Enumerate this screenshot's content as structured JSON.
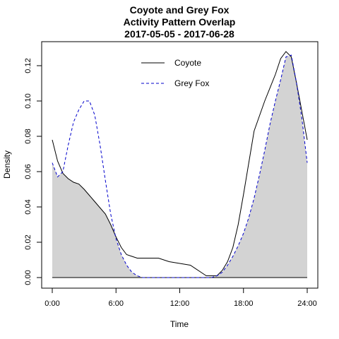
{
  "chart_data": {
    "type": "area",
    "title": [
      "Coyote and Grey Fox",
      "Activity Pattern Overlap",
      "2017-05-05 - 2017-06-28"
    ],
    "xlabel": "Time",
    "ylabel": "Density",
    "xlim": [
      0,
      24
    ],
    "ylim": [
      0,
      0.13
    ],
    "xticks": [
      0,
      6,
      12,
      18,
      24
    ],
    "xtick_labels": [
      "0:00",
      "6:00",
      "12:00",
      "18:00",
      "24:00"
    ],
    "yticks": [
      0.0,
      0.02,
      0.04,
      0.06,
      0.08,
      0.1,
      0.12
    ],
    "ytick_labels": [
      "0.00",
      "0.02",
      "0.04",
      "0.06",
      "0.08",
      "0.10",
      "0.12"
    ],
    "legend_position": "top-center",
    "overlap_fill_color": "#d3d3d3",
    "series": [
      {
        "name": "Coyote",
        "line": "solid",
        "color": "#000000",
        "x": [
          0,
          0.5,
          1,
          1.5,
          2,
          2.5,
          3,
          4,
          5,
          5.5,
          6,
          6.5,
          7,
          7.5,
          8,
          9,
          10,
          11,
          12,
          13,
          14,
          14.5,
          15,
          15.5,
          16,
          16.5,
          17,
          17.5,
          18,
          18.5,
          19,
          20,
          21,
          21.5,
          22,
          22.5,
          23,
          24
        ],
        "y": [
          0.078,
          0.066,
          0.059,
          0.056,
          0.054,
          0.053,
          0.05,
          0.043,
          0.036,
          0.03,
          0.023,
          0.017,
          0.013,
          0.012,
          0.011,
          0.011,
          0.011,
          0.009,
          0.008,
          0.007,
          0.003,
          0.001,
          0.001,
          0.001,
          0.004,
          0.009,
          0.017,
          0.03,
          0.047,
          0.065,
          0.083,
          0.1,
          0.115,
          0.124,
          0.128,
          0.125,
          0.11,
          0.078
        ]
      },
      {
        "name": "Grey Fox",
        "line": "dashed",
        "color": "#0000cc",
        "x": [
          0,
          0.5,
          1,
          1.5,
          2,
          2.5,
          3,
          3.5,
          4,
          4.5,
          5,
          5.5,
          6,
          6.5,
          7,
          7.5,
          8,
          8.5,
          9,
          10,
          11,
          12,
          13,
          14,
          15,
          15.5,
          16,
          16.5,
          17,
          17.5,
          18,
          18.5,
          19,
          19.5,
          20,
          20.5,
          21,
          21.5,
          22,
          22.5,
          23,
          23.5,
          24
        ],
        "y": [
          0.065,
          0.057,
          0.06,
          0.075,
          0.088,
          0.095,
          0.1,
          0.1,
          0.092,
          0.075,
          0.055,
          0.036,
          0.022,
          0.013,
          0.007,
          0.003,
          0.001,
          0.0,
          0.0,
          0.0,
          0.0,
          0.0,
          0.0,
          0.0,
          0.0,
          0.001,
          0.003,
          0.007,
          0.012,
          0.018,
          0.025,
          0.034,
          0.045,
          0.058,
          0.072,
          0.087,
          0.1,
          0.112,
          0.125,
          0.126,
          0.11,
          0.09,
          0.065
        ]
      }
    ]
  }
}
